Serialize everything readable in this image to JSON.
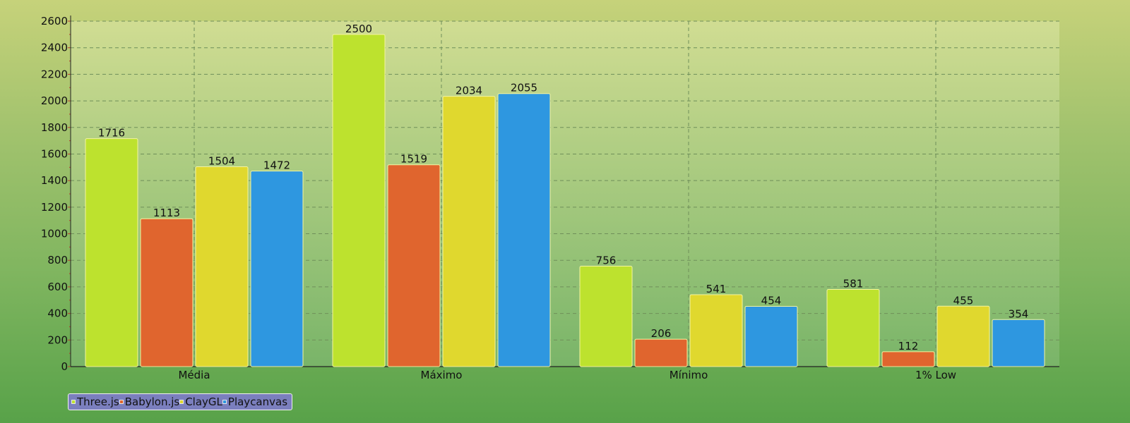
{
  "chart_data": {
    "type": "bar",
    "categories": [
      "Média",
      "Máximo",
      "Mínimo",
      "1% Low"
    ],
    "series": [
      {
        "name": "Three.js",
        "color": "#bde22e",
        "values": [
          1716,
          2500,
          756,
          581
        ]
      },
      {
        "name": "Babylon.js",
        "color": "#e0652e",
        "values": [
          1113,
          1519,
          206,
          112
        ]
      },
      {
        "name": "ClayGL",
        "color": "#e0d82e",
        "values": [
          1504,
          2034,
          541,
          455
        ]
      },
      {
        "name": "Playcanvas",
        "color": "#2e97e0",
        "values": [
          1472,
          2055,
          454,
          354
        ]
      }
    ],
    "yticks": [
      "0",
      "200",
      "400",
      "600",
      "800",
      "1000",
      "1200",
      "1400",
      "1600",
      "1800",
      "2000",
      "2200",
      "2400",
      "2600"
    ],
    "ylim": [
      0,
      2600
    ],
    "title": "",
    "xlabel": "",
    "ylabel": "",
    "grid": true,
    "legend_position": "bottom-left",
    "data_labels": true
  }
}
